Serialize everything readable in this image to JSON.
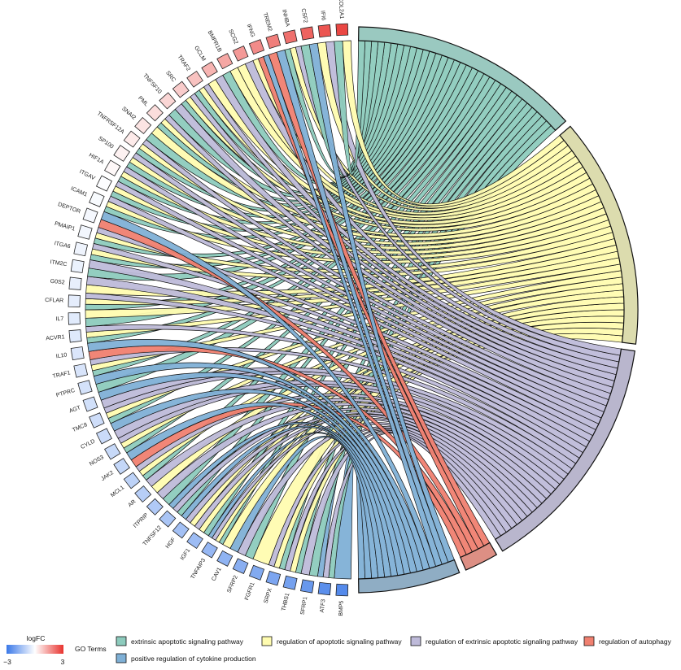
{
  "chart_data": {
    "type": "chord",
    "legend": {
      "logfc_title": "logFC",
      "logfc_min_label": "−3",
      "logfc_max_label": "3",
      "logfc_range": [
        -3,
        3
      ],
      "colors": {
        "low": "#3a78e8",
        "mid": "#ffffff",
        "high": "#e8332e"
      },
      "terms_title": "GO Terms"
    },
    "terms": [
      {
        "name": "extrinsic apoptotic signaling pathway",
        "color": "#8dcbbd",
        "arc_color": "#9ac9c0"
      },
      {
        "name": "regulation of apoptotic signaling pathway",
        "color": "#fffcb0",
        "arc_color": "#dcdcae"
      },
      {
        "name": "regulation of extrinsic apoptotic signaling pathway",
        "color": "#bebad9",
        "arc_color": "#b9b6cd"
      },
      {
        "name": "regulation of autophagy",
        "color": "#f08070",
        "arc_color": "#dd8f84"
      },
      {
        "name": "positive regulation of cytokine production",
        "color": "#7fb0d6",
        "arc_color": "#8fadc4"
      }
    ],
    "genes": [
      {
        "name": "BMP5",
        "logFC": -2.6,
        "terms": [
          4
        ]
      },
      {
        "name": "ATF3",
        "logFC": -2.5,
        "terms": [
          0,
          2,
          4
        ]
      },
      {
        "name": "SFRP1",
        "logFC": -2.3,
        "terms": [
          0,
          2
        ]
      },
      {
        "name": "THBS1",
        "logFC": -2.1,
        "terms": [
          0,
          1,
          2
        ]
      },
      {
        "name": "SRPX",
        "logFC": -2.0,
        "terms": [
          0,
          1,
          2
        ]
      },
      {
        "name": "FGFR1",
        "logFC": -1.9,
        "terms": [
          1
        ]
      },
      {
        "name": "SFRP2",
        "logFC": -1.8,
        "terms": [
          0,
          2
        ]
      },
      {
        "name": "CAV1",
        "logFC": -1.7,
        "terms": [
          4,
          1
        ]
      },
      {
        "name": "TNFAIP3",
        "logFC": -1.6,
        "terms": [
          0,
          1,
          2,
          4
        ]
      },
      {
        "name": "IGF1",
        "logFC": -1.5,
        "terms": [
          0,
          1,
          2
        ]
      },
      {
        "name": "HGF",
        "logFC": -1.4,
        "terms": [
          1,
          2,
          4
        ]
      },
      {
        "name": "TNFSF12",
        "logFC": -1.3,
        "terms": [
          0,
          2,
          4
        ]
      },
      {
        "name": "ITPRIP",
        "logFC": -1.2,
        "terms": [
          0,
          2
        ]
      },
      {
        "name": "AR",
        "logFC": -1.1,
        "terms": [
          1,
          2
        ]
      },
      {
        "name": "MCL1",
        "logFC": -1.0,
        "terms": [
          0,
          1,
          2
        ]
      },
      {
        "name": "JAK2",
        "logFC": -0.9,
        "terms": [
          3,
          4
        ]
      },
      {
        "name": "NOS3",
        "logFC": -0.85,
        "terms": [
          0,
          1,
          2
        ]
      },
      {
        "name": "CYLD",
        "logFC": -0.8,
        "terms": [
          2,
          4
        ]
      },
      {
        "name": "TMC8",
        "logFC": -0.75,
        "terms": [
          0,
          1,
          2
        ]
      },
      {
        "name": "AGT",
        "logFC": -0.7,
        "terms": [
          2,
          4
        ]
      },
      {
        "name": "PTPRC",
        "logFC": -0.65,
        "terms": [
          0,
          4
        ]
      },
      {
        "name": "TRAF1",
        "logFC": -0.6,
        "terms": [
          0,
          1,
          2
        ]
      },
      {
        "name": "IL10",
        "logFC": -0.55,
        "terms": [
          3,
          4
        ]
      },
      {
        "name": "ACVR1",
        "logFC": -0.5,
        "terms": [
          0,
          1,
          2
        ]
      },
      {
        "name": "IL7",
        "logFC": -0.45,
        "terms": [
          0,
          1
        ]
      },
      {
        "name": "CFLAR",
        "logFC": -0.4,
        "terms": [
          0,
          1,
          2
        ]
      },
      {
        "name": "G0S2",
        "logFC": -0.35,
        "terms": [
          1,
          2
        ]
      },
      {
        "name": "ITM2C",
        "logFC": -0.3,
        "terms": [
          0,
          2
        ]
      },
      {
        "name": "ITGA6",
        "logFC": -0.25,
        "terms": [
          0,
          1,
          2
        ]
      },
      {
        "name": "PMAIP1",
        "logFC": -0.2,
        "terms": [
          0,
          1,
          2
        ]
      },
      {
        "name": "DEPTOR",
        "logFC": -0.15,
        "terms": [
          3,
          4
        ]
      },
      {
        "name": "ICAM1",
        "logFC": -0.1,
        "terms": [
          0,
          1,
          2
        ]
      },
      {
        "name": "ITGAV",
        "logFC": -0.05,
        "terms": [
          0,
          1,
          2
        ]
      },
      {
        "name": "HIF1A",
        "logFC": 0.1,
        "terms": [
          0,
          1,
          2
        ]
      },
      {
        "name": "SP100",
        "logFC": 0.2,
        "terms": [
          0,
          1,
          2
        ]
      },
      {
        "name": "TNFRSF12A",
        "logFC": 0.3,
        "terms": [
          0,
          1,
          2
        ]
      },
      {
        "name": "SNAI2",
        "logFC": 0.4,
        "terms": [
          0,
          1
        ]
      },
      {
        "name": "PML",
        "logFC": 0.5,
        "terms": [
          0,
          1,
          2
        ]
      },
      {
        "name": "TNFSF10",
        "logFC": 0.6,
        "terms": [
          0,
          2
        ]
      },
      {
        "name": "SRC",
        "logFC": 0.75,
        "terms": [
          0,
          1,
          2
        ]
      },
      {
        "name": "TRAF2",
        "logFC": 0.9,
        "terms": [
          0,
          1,
          2
        ]
      },
      {
        "name": "GCLM",
        "logFC": 1.1,
        "terms": [
          1,
          2
        ]
      },
      {
        "name": "BMPR1B",
        "logFC": 1.3,
        "terms": [
          0,
          1
        ]
      },
      {
        "name": "SCG2",
        "logFC": 1.5,
        "terms": [
          1,
          2
        ]
      },
      {
        "name": "IFNG",
        "logFC": 1.7,
        "terms": [
          1,
          3,
          4
        ]
      },
      {
        "name": "TREM2",
        "logFC": 1.9,
        "terms": [
          3,
          4
        ]
      },
      {
        "name": "INHBA",
        "logFC": 2.1,
        "terms": [
          0,
          1,
          2
        ]
      },
      {
        "name": "CSF2",
        "logFC": 2.3,
        "terms": [
          0,
          4
        ]
      },
      {
        "name": "IFI6",
        "logFC": 2.5,
        "terms": [
          1,
          2
        ]
      },
      {
        "name": "COL2A1",
        "logFC": 2.7,
        "terms": [
          0,
          1
        ]
      }
    ]
  }
}
